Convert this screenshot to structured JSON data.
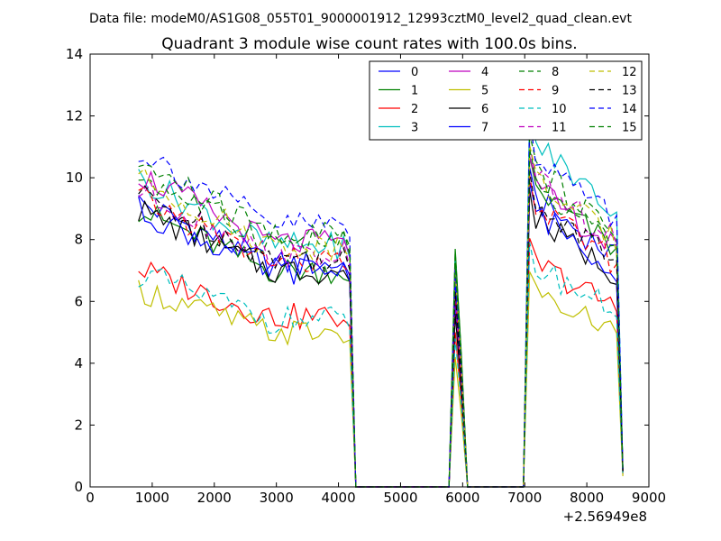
{
  "chart_data": {
    "type": "line",
    "suptitle": "Data file: modeM0/AS1G08_055T01_9000001912_12993cztM0_level2_quad_clean.evt",
    "title": "Quadrant 3 module wise count rates with 100.0s bins.",
    "xlabel": "",
    "ylabel": "",
    "x_offset_label": "+2.56949e8",
    "xlim": [
      0,
      9000
    ],
    "ylim": [
      0,
      14
    ],
    "xticks": [
      0,
      1000,
      2000,
      3000,
      4000,
      5000,
      6000,
      7000,
      8000,
      9000
    ],
    "yticks": [
      0,
      2,
      4,
      6,
      8,
      10,
      12,
      14
    ],
    "grid": false,
    "legend_placement": "top-right",
    "x_segments": [
      {
        "start": 780,
        "end": 4180,
        "step": 100
      },
      {
        "start": 4280,
        "end": 5780,
        "step": 100
      },
      {
        "start": 5880,
        "end": 6080,
        "step": 100
      },
      {
        "start": 6180,
        "end": 6980,
        "step": 100
      },
      {
        "start": 7080,
        "end": 8480,
        "step": 100
      },
      {
        "start": 8580,
        "end": 8580,
        "step": 100
      }
    ],
    "series": [
      {
        "name": "0",
        "color": "#0000ff",
        "dash": "solid",
        "base": 7.2,
        "peak": 6.0,
        "late": 8.6
      },
      {
        "name": "1",
        "color": "#008000",
        "dash": "solid",
        "base": 7.0,
        "peak": 7.7,
        "late": 8.9
      },
      {
        "name": "2",
        "color": "#ff0000",
        "dash": "solid",
        "base": 5.5,
        "peak": 5.0,
        "late": 6.7
      },
      {
        "name": "3",
        "color": "#00bfbf",
        "dash": "solid",
        "base": 7.8,
        "peak": 7.3,
        "late": 10.3
      },
      {
        "name": "4",
        "color": "#bf00bf",
        "dash": "solid",
        "base": 7.9,
        "peak": 7.2,
        "late": 8.9
      },
      {
        "name": "5",
        "color": "#bfbf00",
        "dash": "solid",
        "base": 5.0,
        "peak": 4.2,
        "late": 5.8
      },
      {
        "name": "6",
        "color": "#000000",
        "dash": "solid",
        "base": 7.0,
        "peak": 5.6,
        "late": 8.0
      },
      {
        "name": "7",
        "color": "#0000ff",
        "dash": "solid",
        "base": 7.0,
        "peak": 6.6,
        "late": 8.2
      },
      {
        "name": "8",
        "color": "#008000",
        "dash": "dashed",
        "base": 7.9,
        "peak": 7.6,
        "late": 9.5
      },
      {
        "name": "9",
        "color": "#ff0000",
        "dash": "dashed",
        "base": 7.3,
        "peak": 6.3,
        "late": 8.4
      },
      {
        "name": "10",
        "color": "#00bfbf",
        "dash": "dashed",
        "base": 5.4,
        "peak": 4.8,
        "late": 6.6
      },
      {
        "name": "11",
        "color": "#bf00bf",
        "dash": "dashed",
        "base": 7.5,
        "peak": 6.1,
        "late": 9.2
      },
      {
        "name": "12",
        "color": "#bfbf00",
        "dash": "dashed",
        "base": 7.8,
        "peak": 7.0,
        "late": 9.2
      },
      {
        "name": "13",
        "color": "#000000",
        "dash": "dashed",
        "base": 7.4,
        "peak": 6.3,
        "late": 8.5
      },
      {
        "name": "14",
        "color": "#0000ff",
        "dash": "dashed",
        "base": 8.5,
        "peak": 7.0,
        "late": 10.0
      },
      {
        "name": "15",
        "color": "#008000",
        "dash": "dashed",
        "base": 8.2,
        "peak": 7.2,
        "late": 9.1
      }
    ]
  }
}
